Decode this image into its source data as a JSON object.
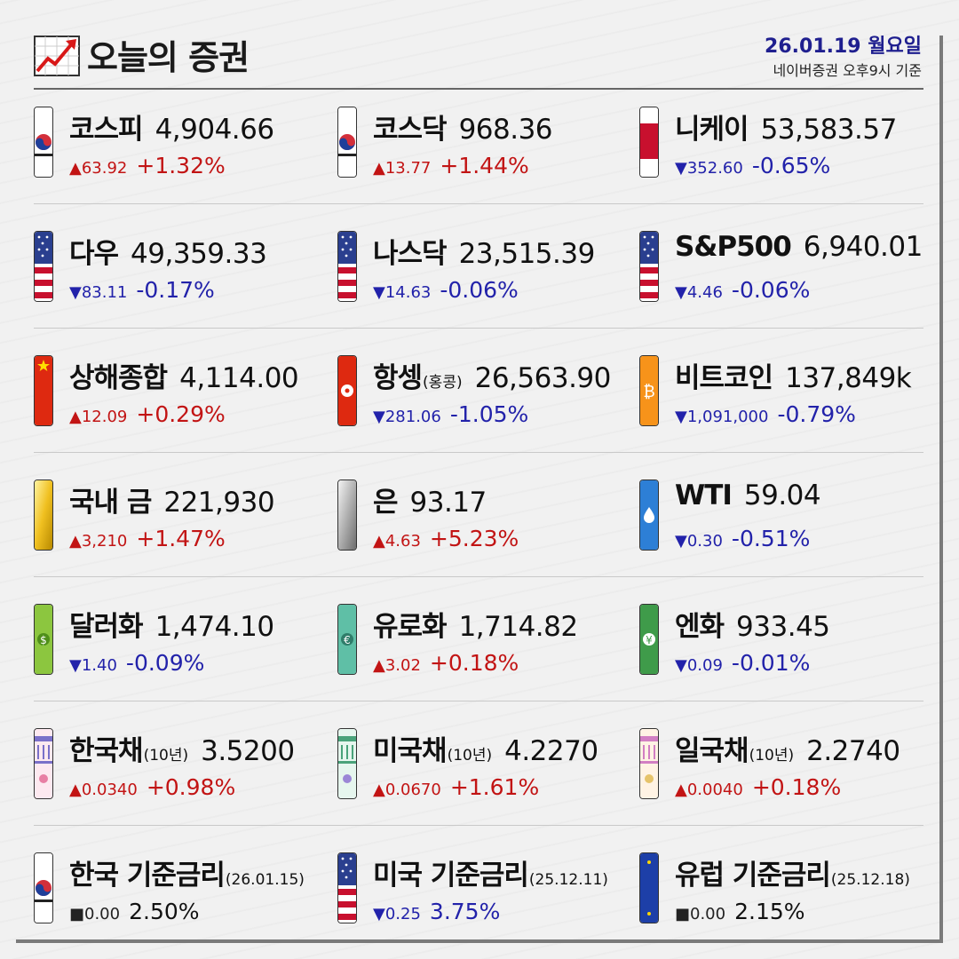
{
  "header": {
    "title": "오늘의 증권",
    "date": "26.01.19 월요일",
    "source": "네이버증권 오후9시 기준"
  },
  "colors": {
    "up": "#c21414",
    "down": "#2222aa",
    "flat": "#222222",
    "date": "#1f1f8f"
  },
  "items": [
    {
      "name": "코스피",
      "sub": "",
      "value": "4,904.66",
      "diff": "▲63.92",
      "pct": "+1.32%",
      "dir": "up",
      "icon": "korea-flag-icon"
    },
    {
      "name": "코스닥",
      "sub": "",
      "value": "968.36",
      "diff": "▲13.77",
      "pct": "+1.44%",
      "dir": "up",
      "icon": "korea-flag-icon"
    },
    {
      "name": "니케이",
      "sub": "",
      "value": "53,583.57",
      "diff": "▼352.60",
      "pct": "-0.65%",
      "dir": "down",
      "icon": "japan-flag-icon"
    },
    {
      "name": "다우",
      "sub": "",
      "value": "49,359.33",
      "diff": "▼83.11",
      "pct": "-0.17%",
      "dir": "down",
      "icon": "us-flag-icon"
    },
    {
      "name": "나스닥",
      "sub": "",
      "value": "23,515.39",
      "diff": "▼14.63",
      "pct": "-0.06%",
      "dir": "down",
      "icon": "us-flag-icon"
    },
    {
      "name": "S&P500",
      "sub": "",
      "value": "6,940.01",
      "diff": "▼4.46",
      "pct": "-0.06%",
      "dir": "down",
      "icon": "us-flag-icon"
    },
    {
      "name": "상해종합",
      "sub": "",
      "value": "4,114.00",
      "diff": "▲12.09",
      "pct": "+0.29%",
      "dir": "up",
      "icon": "china-flag-icon"
    },
    {
      "name": "항셍",
      "sub": "(홍콩)",
      "value": "26,563.90",
      "diff": "▼281.06",
      "pct": "-1.05%",
      "dir": "down",
      "icon": "hongkong-flag-icon"
    },
    {
      "name": "비트코인",
      "sub": "",
      "value": "137,849k",
      "diff": "▼1,091,000",
      "pct": "-0.79%",
      "dir": "down",
      "icon": "bitcoin-icon"
    },
    {
      "name": "국내 금",
      "sub": "",
      "value": "221,930",
      "diff": "▲3,210",
      "pct": "+1.47%",
      "dir": "up",
      "icon": "gold-bar-icon"
    },
    {
      "name": "은",
      "sub": "",
      "value": "93.17",
      "diff": "▲4.63",
      "pct": "+5.23%",
      "dir": "up",
      "icon": "silver-bar-icon"
    },
    {
      "name": "WTI",
      "sub": "",
      "value": "59.04",
      "diff": "▼0.30",
      "pct": "-0.51%",
      "dir": "down",
      "icon": "oil-drop-icon"
    },
    {
      "name": "달러화",
      "sub": "",
      "value": "1,474.10",
      "diff": "▼1.40",
      "pct": "-0.09%",
      "dir": "down",
      "icon": "dollar-bill-icon"
    },
    {
      "name": "유로화",
      "sub": "",
      "value": "1,714.82",
      "diff": "▲3.02",
      "pct": "+0.18%",
      "dir": "up",
      "icon": "euro-bill-icon"
    },
    {
      "name": "엔화",
      "sub": "",
      "value": "933.45",
      "diff": "▼0.09",
      "pct": "-0.01%",
      "dir": "down",
      "icon": "yen-bill-icon"
    },
    {
      "name": "한국채",
      "sub": "(10년)",
      "value": "3.5200",
      "diff": "▲0.0340",
      "pct": "+0.98%",
      "dir": "up",
      "icon": "korea-bond-icon"
    },
    {
      "name": "미국채",
      "sub": "(10년)",
      "value": "4.2270",
      "diff": "▲0.0670",
      "pct": "+1.61%",
      "dir": "up",
      "icon": "us-bond-icon"
    },
    {
      "name": "일국채",
      "sub": "(10년)",
      "value": "2.2740",
      "diff": "▲0.0040",
      "pct": "+0.18%",
      "dir": "up",
      "icon": "japan-bond-icon"
    },
    {
      "name": "한국 기준금리",
      "sub": "(26.01.15)",
      "value": "",
      "diff": "■0.00",
      "pct": "2.50%",
      "dir": "flat",
      "icon": "korea-flag-icon"
    },
    {
      "name": "미국 기준금리",
      "sub": "(25.12.11)",
      "value": "",
      "diff": "▼0.25",
      "pct": "3.75%",
      "dir": "down",
      "icon": "us-flag-icon"
    },
    {
      "name": "유럽 기준금리",
      "sub": "(25.12.18)",
      "value": "",
      "diff": "■0.00",
      "pct": "2.15%",
      "dir": "flat",
      "icon": "eu-flag-icon"
    }
  ]
}
